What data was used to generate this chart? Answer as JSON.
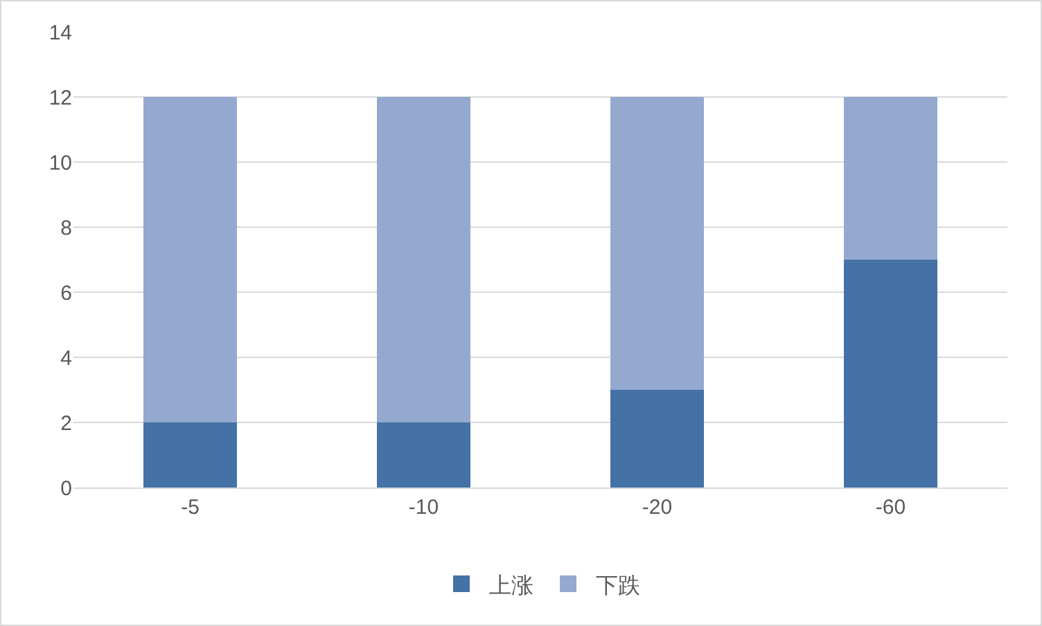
{
  "chart_data": {
    "type": "bar",
    "stacked": true,
    "categories": [
      "-5",
      "-10",
      "-20",
      "-60"
    ],
    "series": [
      {
        "name": "上涨",
        "color": "#4472a6",
        "values": [
          2,
          2,
          3,
          7
        ]
      },
      {
        "name": "下跌",
        "color": "#95a9d0",
        "values": [
          10,
          10,
          9,
          5
        ]
      }
    ],
    "ylim": [
      0,
      14
    ],
    "yticks": [
      0,
      2,
      4,
      6,
      8,
      10,
      12,
      14
    ],
    "grid": "y",
    "legend": "bottom"
  }
}
